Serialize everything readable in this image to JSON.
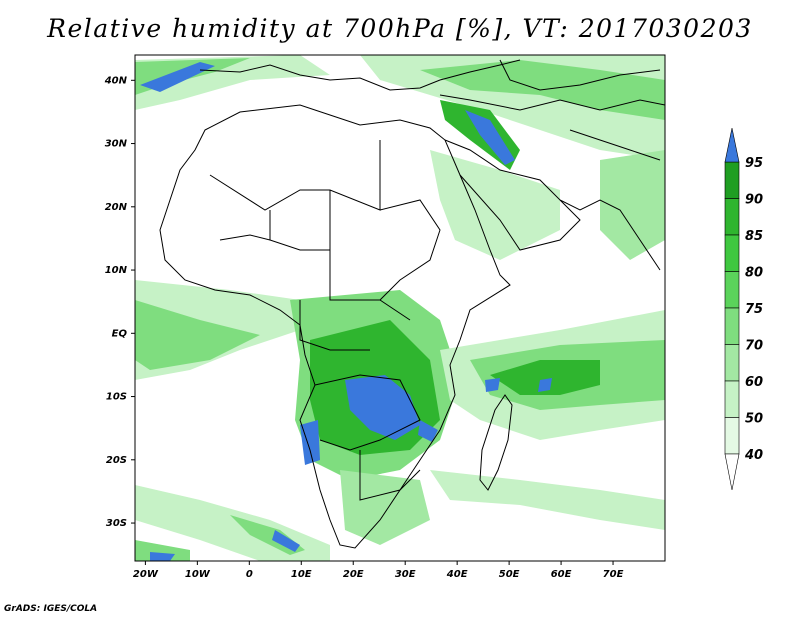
{
  "title": "Relative humidity at 700hPa [%], VT: 2017030203",
  "credit": "GrADS: IGES/COLA",
  "lat_labels": [
    "40N",
    "30N",
    "20N",
    "10N",
    "EQ",
    "10S",
    "20S",
    "30S"
  ],
  "lat_values": [
    40,
    30,
    20,
    10,
    0,
    -10,
    -20,
    -30
  ],
  "lon_labels": [
    "20W",
    "10W",
    "0",
    "10E",
    "20E",
    "30E",
    "40E",
    "50E",
    "60E",
    "70E"
  ],
  "lon_values": [
    -20,
    -10,
    0,
    10,
    20,
    30,
    40,
    50,
    60,
    70
  ],
  "colorbar": {
    "levels": [
      "95",
      "90",
      "85",
      "80",
      "75",
      "70",
      "60",
      "50",
      "40"
    ],
    "colors": [
      "#1f9e22",
      "#2fb52f",
      "#3fc840",
      "#5bd35b",
      "#7fdd7f",
      "#a3e8a3",
      "#c6f2c6",
      "#e4f9e4"
    ],
    "over_color": "#3a78dc",
    "under_color": "#ffffff"
  },
  "colors": {
    "very_humid": "#3a78dc",
    "humid": "#2fb52f",
    "moist": "#8fe08f",
    "light": "#c6f2c6"
  }
}
